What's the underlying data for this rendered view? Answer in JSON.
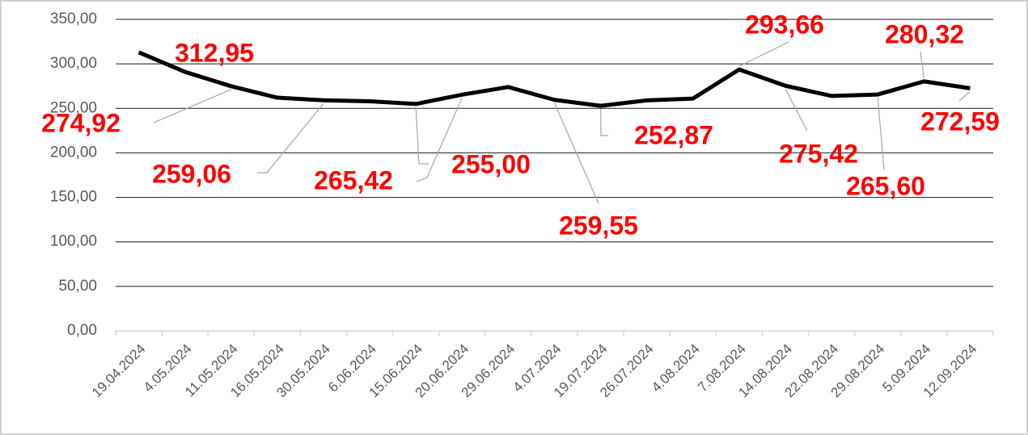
{
  "chart_data": {
    "type": "line",
    "categories": [
      "19.04.2024",
      "4.05.2024",
      "11.05.2024",
      "16.05.2024",
      "30.05.2024",
      "6.06.2024",
      "15.06.2024",
      "20.06.2024",
      "29.06.2024",
      "4.07.2024",
      "19.07.2024",
      "26.07.2024",
      "4.08.2024",
      "7.08.2024",
      "14.08.2024",
      "22.08.2024",
      "29.08.2024",
      "5.09.2024",
      "12.09.2024"
    ],
    "series": [
      {
        "color": "#000000",
        "values": [
          312.95,
          291,
          274.92,
          262,
          259.06,
          258,
          255.0,
          265.42,
          274,
          259.55,
          252.87,
          259,
          261,
          293.66,
          275.42,
          264,
          265.6,
          280.32,
          272.59
        ],
        "value_labels": [
          "312,95",
          null,
          "274,92",
          null,
          "259,06",
          null,
          "255,00",
          "265,42",
          null,
          "259,55",
          "252,87",
          null,
          null,
          "293,66",
          "275,42",
          null,
          "265,60",
          "280,32",
          "272,59"
        ]
      }
    ],
    "ylim": [
      0,
      350
    ],
    "yticks": [
      {
        "value": 0,
        "label": "0,00"
      },
      {
        "value": 50,
        "label": "50,00"
      },
      {
        "value": 100,
        "label": "100,00"
      },
      {
        "value": 150,
        "label": "150,00"
      },
      {
        "value": 200,
        "label": "200,00"
      },
      {
        "value": 250,
        "label": "250,00"
      },
      {
        "value": 300,
        "label": "300,00"
      },
      {
        "value": 350,
        "label": "350,00"
      }
    ],
    "grid": true
  }
}
